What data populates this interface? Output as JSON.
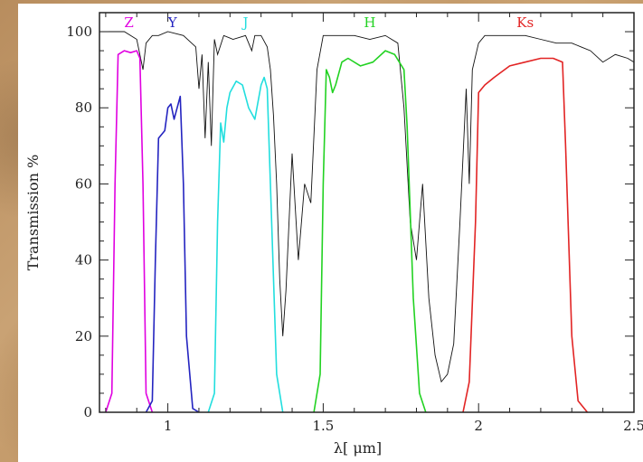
{
  "chart_data": {
    "type": "line",
    "xlabel": "λ[ μm]",
    "ylabel": "Transmission %",
    "xlim": [
      0.78,
      2.5
    ],
    "ylim": [
      0,
      105
    ],
    "x_ticks": [
      1,
      1.5,
      2,
      2.5
    ],
    "x_tick_labels": [
      "1",
      "1.5",
      "2",
      "2.5"
    ],
    "y_ticks": [
      0,
      20,
      40,
      60,
      80,
      100
    ],
    "y_tick_labels": [
      "0",
      "20",
      "40",
      "60",
      "80",
      "100"
    ],
    "series": [
      {
        "name": "Z",
        "color": "#e000e0",
        "x": [
          0.8,
          0.82,
          0.83,
          0.84,
          0.86,
          0.88,
          0.9,
          0.91,
          0.92,
          0.93,
          0.95
        ],
        "y": [
          0,
          5,
          60,
          94,
          95,
          94.5,
          95,
          93,
          60,
          5,
          0
        ]
      },
      {
        "name": "Y",
        "color": "#2424c0",
        "x": [
          0.93,
          0.95,
          0.96,
          0.97,
          0.99,
          1.0,
          1.01,
          1.02,
          1.03,
          1.04,
          1.05,
          1.06,
          1.08,
          1.1
        ],
        "y": [
          0,
          3,
          40,
          72,
          74,
          80,
          81,
          77,
          80,
          83,
          60,
          20,
          1,
          0
        ]
      },
      {
        "name": "J",
        "color": "#22dede",
        "x": [
          1.13,
          1.15,
          1.16,
          1.17,
          1.18,
          1.19,
          1.2,
          1.22,
          1.24,
          1.26,
          1.28,
          1.3,
          1.31,
          1.32,
          1.33,
          1.35,
          1.37
        ],
        "y": [
          0,
          5,
          50,
          76,
          71,
          80,
          84,
          87,
          86,
          80,
          77,
          86,
          88,
          85,
          60,
          10,
          0
        ]
      },
      {
        "name": "H",
        "color": "#22d222",
        "x": [
          1.47,
          1.49,
          1.5,
          1.51,
          1.52,
          1.53,
          1.54,
          1.56,
          1.58,
          1.62,
          1.66,
          1.7,
          1.73,
          1.76,
          1.77,
          1.79,
          1.81,
          1.83
        ],
        "y": [
          0,
          10,
          60,
          90,
          88,
          84,
          86,
          92,
          93,
          91,
          92,
          95,
          94,
          90,
          75,
          30,
          5,
          0
        ]
      },
      {
        "name": "Ks",
        "color": "#e22424",
        "x": [
          1.95,
          1.97,
          1.99,
          2.0,
          2.02,
          2.05,
          2.1,
          2.15,
          2.2,
          2.24,
          2.27,
          2.28,
          2.3,
          2.32,
          2.35
        ],
        "y": [
          0,
          8,
          50,
          84,
          86,
          88,
          91,
          92,
          93,
          93,
          92,
          70,
          20,
          3,
          0
        ]
      }
    ],
    "atmosphere": {
      "name": "",
      "color": "#111111",
      "x": [
        0.78,
        0.86,
        0.9,
        0.92,
        0.93,
        0.95,
        0.97,
        1.0,
        1.05,
        1.09,
        1.1,
        1.11,
        1.12,
        1.13,
        1.14,
        1.15,
        1.16,
        1.18,
        1.21,
        1.25,
        1.27,
        1.28,
        1.3,
        1.32,
        1.33,
        1.34,
        1.35,
        1.36,
        1.37,
        1.38,
        1.4,
        1.42,
        1.44,
        1.46,
        1.48,
        1.5,
        1.55,
        1.6,
        1.65,
        1.7,
        1.74,
        1.76,
        1.78,
        1.8,
        1.82,
        1.84,
        1.86,
        1.88,
        1.9,
        1.92,
        1.94,
        1.96,
        1.97,
        1.98,
        2.0,
        2.02,
        2.05,
        2.1,
        2.15,
        2.2,
        2.25,
        2.3,
        2.33,
        2.36,
        2.4,
        2.44,
        2.48,
        2.5
      ],
      "y": [
        100,
        100,
        98,
        90,
        97,
        99,
        99,
        100,
        99,
        96,
        85,
        94,
        72,
        92,
        70,
        98,
        94,
        99,
        98,
        99,
        95,
        99,
        99,
        96,
        90,
        78,
        60,
        35,
        20,
        32,
        68,
        40,
        60,
        55,
        90,
        99,
        99,
        99,
        98,
        99,
        97,
        80,
        50,
        40,
        60,
        30,
        15,
        8,
        10,
        18,
        50,
        85,
        60,
        90,
        97,
        99,
        99,
        99,
        99,
        98,
        97,
        97,
        96,
        95,
        92,
        94,
        93,
        92
      ]
    }
  }
}
